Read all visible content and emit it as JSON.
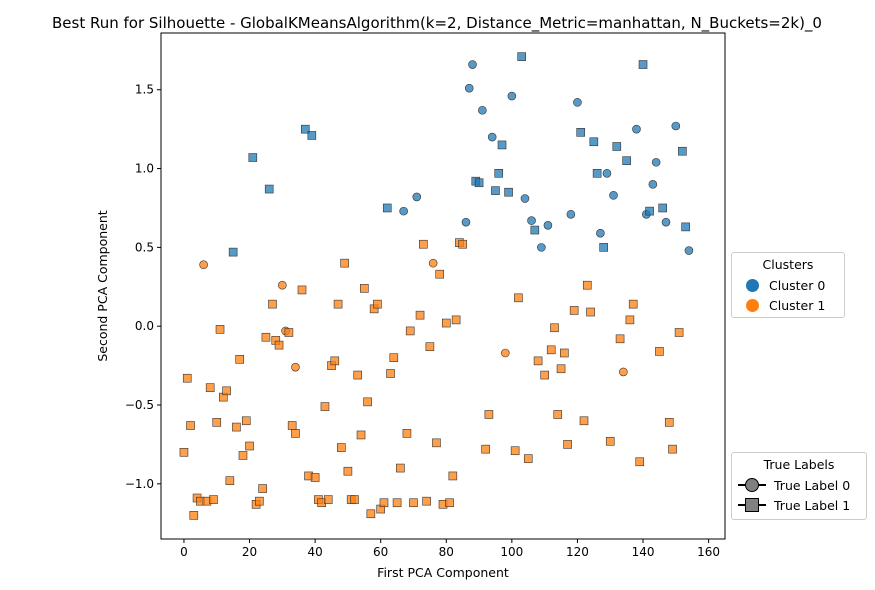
{
  "chart_data": {
    "type": "scatter",
    "title": "Best Run for Silhouette - GlobalKMeansAlgorithm(k=2, Distance_Metric=manhattan, N_Buckets=2k)_0",
    "xlabel": "First PCA Component",
    "ylabel": "Second PCA Component",
    "xlim": [
      -7,
      165
    ],
    "ylim": [
      -1.35,
      1.86
    ],
    "xticks": [
      0,
      20,
      40,
      60,
      80,
      100,
      120,
      140,
      160
    ],
    "yticks": [
      -1.0,
      -0.5,
      0.0,
      0.5,
      1.0,
      1.5
    ],
    "grid": false,
    "cluster_colors": {
      "0": "#1f77b4",
      "1": "#ff7f0e"
    },
    "legend_clusters": {
      "title": "Clusters",
      "placement": "right",
      "entries": [
        {
          "label": "Cluster 0",
          "color": "#1f77b4"
        },
        {
          "label": "Cluster 1",
          "color": "#ff7f0e"
        }
      ]
    },
    "legend_labels": {
      "title": "True Labels",
      "placement": "lower-right",
      "entries": [
        {
          "label": "True Label 0",
          "marker": "circle"
        },
        {
          "label": "True Label 1",
          "marker": "square"
        }
      ]
    },
    "points": [
      [
        21,
        1.07,
        0,
        1
      ],
      [
        26,
        0.87,
        0,
        1
      ],
      [
        37,
        1.25,
        0,
        1
      ],
      [
        39,
        1.21,
        0,
        1
      ],
      [
        15,
        0.47,
        0,
        1
      ],
      [
        62,
        0.75,
        0,
        1
      ],
      [
        67,
        0.73,
        0,
        0
      ],
      [
        71,
        0.82,
        0,
        0
      ],
      [
        86,
        0.66,
        0,
        0
      ],
      [
        87,
        1.51,
        0,
        0
      ],
      [
        88,
        1.66,
        0,
        0
      ],
      [
        89,
        0.92,
        0,
        1
      ],
      [
        90,
        0.91,
        0,
        1
      ],
      [
        91,
        1.37,
        0,
        0
      ],
      [
        94,
        1.2,
        0,
        0
      ],
      [
        95,
        0.86,
        0,
        1
      ],
      [
        96,
        0.97,
        0,
        1
      ],
      [
        97,
        1.15,
        0,
        1
      ],
      [
        99,
        0.85,
        0,
        1
      ],
      [
        100,
        1.46,
        0,
        0
      ],
      [
        103,
        1.71,
        0,
        1
      ],
      [
        104,
        0.81,
        0,
        0
      ],
      [
        106,
        0.67,
        0,
        0
      ],
      [
        107,
        0.61,
        0,
        1
      ],
      [
        109,
        0.5,
        0,
        0
      ],
      [
        111,
        0.64,
        0,
        0
      ],
      [
        118,
        0.71,
        0,
        0
      ],
      [
        120,
        1.42,
        0,
        0
      ],
      [
        121,
        1.23,
        0,
        1
      ],
      [
        125,
        1.17,
        0,
        1
      ],
      [
        126,
        0.97,
        0,
        1
      ],
      [
        127,
        0.59,
        0,
        0
      ],
      [
        128,
        0.5,
        0,
        1
      ],
      [
        129,
        0.97,
        0,
        0
      ],
      [
        131,
        0.83,
        0,
        0
      ],
      [
        132,
        1.14,
        0,
        1
      ],
      [
        135,
        1.05,
        0,
        1
      ],
      [
        138,
        1.25,
        0,
        0
      ],
      [
        140,
        1.66,
        0,
        1
      ],
      [
        141,
        0.71,
        0,
        0
      ],
      [
        142,
        0.73,
        0,
        1
      ],
      [
        143,
        0.9,
        0,
        0
      ],
      [
        144,
        1.04,
        0,
        0
      ],
      [
        146,
        0.75,
        0,
        1
      ],
      [
        147,
        0.66,
        0,
        0
      ],
      [
        150,
        1.27,
        0,
        0
      ],
      [
        152,
        1.11,
        0,
        1
      ],
      [
        153,
        0.63,
        0,
        1
      ],
      [
        154,
        0.48,
        0,
        0
      ],
      [
        6,
        0.39,
        1,
        0
      ],
      [
        30,
        0.26,
        1,
        0
      ],
      [
        31,
        -0.03,
        1,
        0
      ],
      [
        34,
        -0.26,
        1,
        0
      ],
      [
        76,
        0.4,
        1,
        0
      ],
      [
        98,
        -0.17,
        1,
        0
      ],
      [
        134,
        -0.29,
        1,
        0
      ],
      [
        0,
        -0.8,
        1,
        1
      ],
      [
        1,
        -0.33,
        1,
        1
      ],
      [
        2,
        -0.63,
        1,
        1
      ],
      [
        3,
        -1.2,
        1,
        1
      ],
      [
        4,
        -1.09,
        1,
        1
      ],
      [
        5,
        -1.11,
        1,
        1
      ],
      [
        7,
        -1.11,
        1,
        1
      ],
      [
        8,
        -0.39,
        1,
        1
      ],
      [
        9,
        -1.1,
        1,
        1
      ],
      [
        10,
        -0.61,
        1,
        1
      ],
      [
        11,
        -0.02,
        1,
        1
      ],
      [
        12,
        -0.45,
        1,
        1
      ],
      [
        13,
        -0.41,
        1,
        1
      ],
      [
        14,
        -0.98,
        1,
        1
      ],
      [
        16,
        -0.64,
        1,
        1
      ],
      [
        17,
        -0.21,
        1,
        1
      ],
      [
        18,
        -0.82,
        1,
        1
      ],
      [
        19,
        -0.6,
        1,
        1
      ],
      [
        20,
        -0.76,
        1,
        1
      ],
      [
        22,
        -1.13,
        1,
        1
      ],
      [
        23,
        -1.11,
        1,
        1
      ],
      [
        24,
        -1.03,
        1,
        1
      ],
      [
        25,
        -0.07,
        1,
        1
      ],
      [
        27,
        0.14,
        1,
        1
      ],
      [
        28,
        -0.09,
        1,
        1
      ],
      [
        29,
        -0.12,
        1,
        1
      ],
      [
        32,
        -0.04,
        1,
        1
      ],
      [
        33,
        -0.63,
        1,
        1
      ],
      [
        34,
        -0.68,
        1,
        1
      ],
      [
        36,
        0.23,
        1,
        1
      ],
      [
        38,
        -0.95,
        1,
        1
      ],
      [
        40,
        -0.96,
        1,
        1
      ],
      [
        41,
        -1.1,
        1,
        1
      ],
      [
        42,
        -1.12,
        1,
        1
      ],
      [
        43,
        -0.51,
        1,
        1
      ],
      [
        44,
        -1.1,
        1,
        1
      ],
      [
        45,
        -0.25,
        1,
        1
      ],
      [
        46,
        -0.22,
        1,
        1
      ],
      [
        47,
        0.14,
        1,
        1
      ],
      [
        48,
        -0.77,
        1,
        1
      ],
      [
        49,
        0.4,
        1,
        1
      ],
      [
        50,
        -0.92,
        1,
        1
      ],
      [
        51,
        -1.1,
        1,
        1
      ],
      [
        52,
        -1.1,
        1,
        1
      ],
      [
        53,
        -0.31,
        1,
        1
      ],
      [
        54,
        -0.69,
        1,
        1
      ],
      [
        55,
        0.24,
        1,
        1
      ],
      [
        56,
        -0.48,
        1,
        1
      ],
      [
        57,
        -1.19,
        1,
        1
      ],
      [
        58,
        0.11,
        1,
        1
      ],
      [
        59,
        0.14,
        1,
        1
      ],
      [
        60,
        -1.16,
        1,
        1
      ],
      [
        61,
        -1.12,
        1,
        1
      ],
      [
        63,
        -0.3,
        1,
        1
      ],
      [
        64,
        -0.2,
        1,
        1
      ],
      [
        65,
        -1.12,
        1,
        1
      ],
      [
        66,
        -0.9,
        1,
        1
      ],
      [
        68,
        -0.68,
        1,
        1
      ],
      [
        69,
        -0.03,
        1,
        1
      ],
      [
        70,
        -1.12,
        1,
        1
      ],
      [
        72,
        0.07,
        1,
        1
      ],
      [
        73,
        0.52,
        1,
        1
      ],
      [
        74,
        -1.11,
        1,
        1
      ],
      [
        75,
        -0.13,
        1,
        1
      ],
      [
        77,
        -0.74,
        1,
        1
      ],
      [
        78,
        0.33,
        1,
        1
      ],
      [
        79,
        -1.13,
        1,
        1
      ],
      [
        80,
        0.02,
        1,
        1
      ],
      [
        81,
        -1.12,
        1,
        1
      ],
      [
        82,
        -0.95,
        1,
        1
      ],
      [
        83,
        0.04,
        1,
        1
      ],
      [
        84,
        0.53,
        1,
        1
      ],
      [
        85,
        0.52,
        1,
        1
      ],
      [
        92,
        -0.78,
        1,
        1
      ],
      [
        93,
        -0.56,
        1,
        1
      ],
      [
        101,
        -0.79,
        1,
        1
      ],
      [
        102,
        0.18,
        1,
        1
      ],
      [
        105,
        -0.84,
        1,
        1
      ],
      [
        108,
        -0.22,
        1,
        1
      ],
      [
        110,
        -0.31,
        1,
        1
      ],
      [
        112,
        -0.15,
        1,
        1
      ],
      [
        113,
        -0.01,
        1,
        1
      ],
      [
        114,
        -0.56,
        1,
        1
      ],
      [
        115,
        -0.27,
        1,
        1
      ],
      [
        116,
        -0.17,
        1,
        1
      ],
      [
        117,
        -0.75,
        1,
        1
      ],
      [
        119,
        0.1,
        1,
        1
      ],
      [
        122,
        -0.6,
        1,
        1
      ],
      [
        123,
        0.26,
        1,
        1
      ],
      [
        124,
        0.09,
        1,
        1
      ],
      [
        130,
        -0.73,
        1,
        1
      ],
      [
        133,
        -0.08,
        1,
        1
      ],
      [
        136,
        0.04,
        1,
        1
      ],
      [
        137,
        0.14,
        1,
        1
      ],
      [
        139,
        -0.86,
        1,
        1
      ],
      [
        145,
        -0.16,
        1,
        1
      ],
      [
        148,
        -0.61,
        1,
        1
      ],
      [
        149,
        -0.78,
        1,
        1
      ],
      [
        151,
        -0.04,
        1,
        1
      ]
    ]
  }
}
